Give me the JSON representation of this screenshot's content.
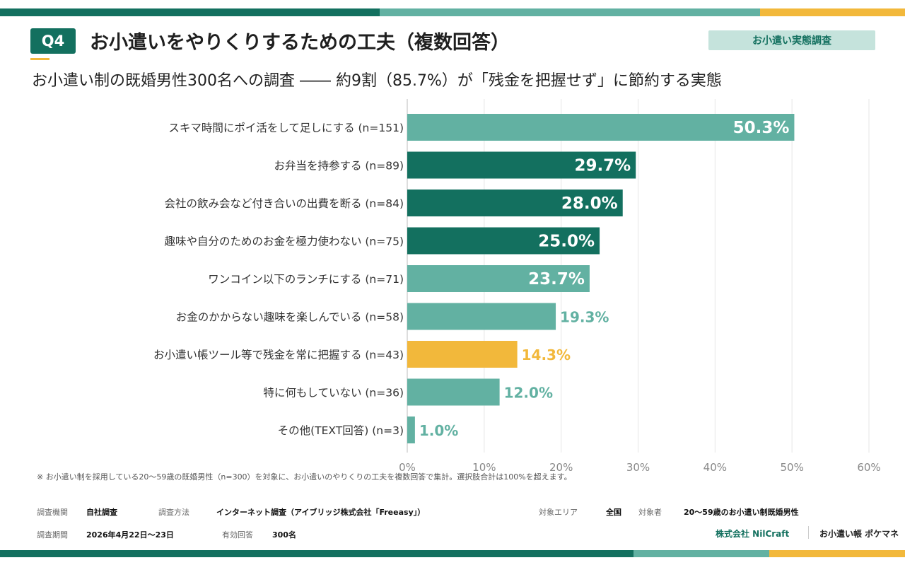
{
  "colors": {
    "teal_dark": "#13705f",
    "teal_light": "#62b1a2",
    "yellow": "#f2b83b",
    "grid": "#e6e6e6",
    "label": "#333333"
  },
  "header": {
    "q_number": "Q4",
    "title": "お小遣いをやりくりするための工夫（複数回答）",
    "tag": "お小遣い実態調査",
    "subtitle": "お小遣い制の既婚男性300名への調査 ―― 約9割（85.7%）が「残金を把握せず」に節約する実態"
  },
  "chart_data": {
    "type": "bar",
    "orientation": "horizontal",
    "categories": [
      "スキマ時間にポイ活をして足しにする (n=151)",
      "お弁当を持参する (n=89)",
      "会社の飲み会など付き合いの出費を断る (n=84)",
      "趣味や自分のためのお金を極力使わない (n=75)",
      "ワンコイン以下のランチにする (n=71)",
      "お金のかからない趣味を楽しんでいる (n=58)",
      "お小遣い帳ツール等で残金を常に把握する (n=43)",
      "特に何もしていない (n=36)",
      "その他(TEXT回答) (n=3)"
    ],
    "values": [
      50.3,
      29.7,
      28.0,
      25.0,
      23.7,
      19.3,
      14.3,
      12.0,
      1.0
    ],
    "value_labels": [
      "50.3%",
      "29.7%",
      "28.0%",
      "25.0%",
      "23.7%",
      "19.3%",
      "14.3%",
      "12.0%",
      "1.0%"
    ],
    "bar_colors": [
      "light",
      "dark",
      "dark",
      "dark",
      "light",
      "light",
      "yellow",
      "light",
      "light"
    ],
    "xlim": [
      0,
      60
    ],
    "xticks": [
      "0%",
      "10%",
      "20%",
      "30%",
      "40%",
      "50%",
      "60%"
    ],
    "xtick_values": [
      0,
      10,
      20,
      30,
      40,
      50,
      60
    ],
    "grid": true
  },
  "footnote": "※ お小遣い制を採用している20〜59歳の既婚男性（n=300）を対象に、お小遣いのやりくりの工夫を複数回答で集計。選択肢合計は100%を超えます。",
  "meta": {
    "org_label": "調査機関",
    "org_value": "自社調査",
    "method_label": "調査方法",
    "method_value": "インターネット調査（アイブリッジ株式会社「Freeasy」）",
    "area_label": "対象エリア",
    "area_value": "全国",
    "target_label": "対象者",
    "target_value": "20〜59歳のお小遣い制既婚男性",
    "period_label": "調査期間",
    "period_value": "2026年4月22日〜23日",
    "valid_label": "有効回答",
    "valid_value": "300名"
  },
  "brand": {
    "company": "株式会社 NilCraft",
    "product": "お小遣い帳 ポケマネ"
  }
}
